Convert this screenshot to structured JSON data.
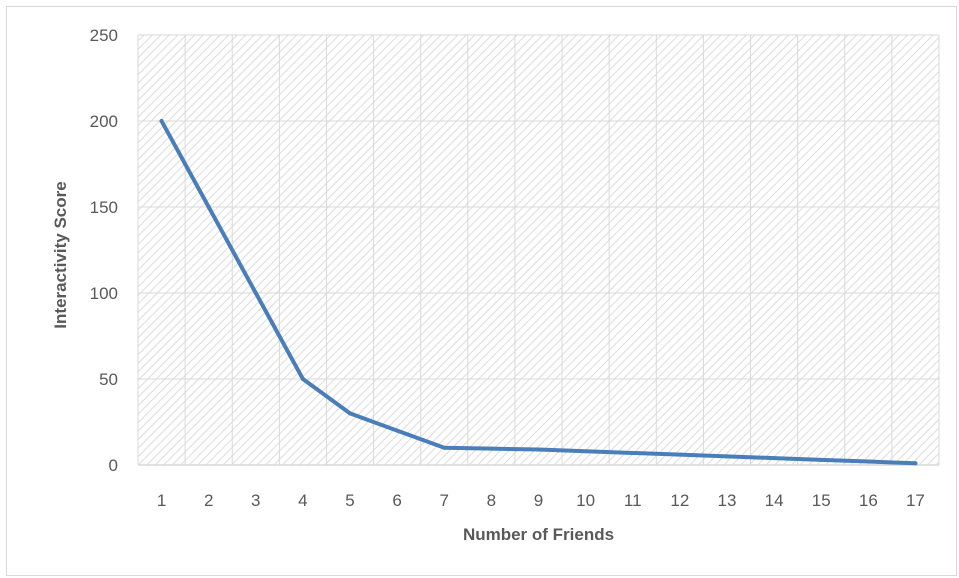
{
  "chart_data": {
    "type": "line",
    "title": "",
    "xlabel": "Number of Friends",
    "ylabel": "Interactivity Score",
    "categories": [
      "1",
      "2",
      "3",
      "4",
      "5",
      "6",
      "7",
      "8",
      "9",
      "10",
      "11",
      "12",
      "13",
      "14",
      "15",
      "16",
      "17"
    ],
    "series": [
      {
        "name": "",
        "values": [
          200,
          150,
          100,
          50,
          30,
          20,
          10,
          9.5,
          9,
          8,
          7,
          6,
          5,
          4,
          3,
          2,
          1
        ]
      }
    ],
    "ylim": [
      0,
      250
    ],
    "yticks": [
      "0",
      "50",
      "100",
      "150",
      "200",
      "250"
    ],
    "grid": true,
    "legend": "none",
    "colors": {
      "line": "#4a7ebb",
      "grid": "#d9d9d9",
      "hatch": "#d9d9d9",
      "text": "#595959"
    }
  }
}
